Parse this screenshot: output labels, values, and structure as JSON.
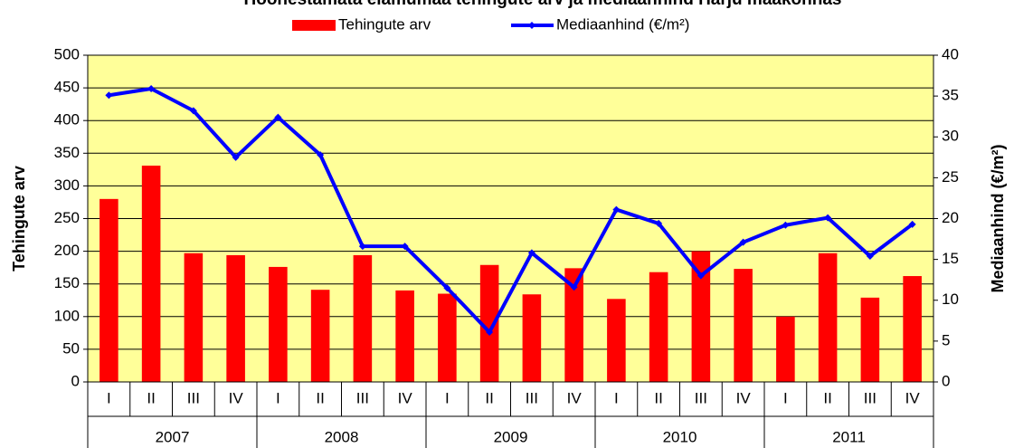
{
  "chart_data": {
    "type": "bar_line",
    "title": "Hoonestamata elamumaa tehingute arv ja mediaanhind Harju maakonnas",
    "categories": [
      "I",
      "II",
      "III",
      "IV",
      "I",
      "II",
      "III",
      "IV",
      "I",
      "II",
      "III",
      "IV",
      "I",
      "II",
      "III",
      "IV",
      "I",
      "II",
      "III",
      "IV"
    ],
    "category_groups": [
      "2007",
      "2008",
      "2009",
      "2010",
      "2011"
    ],
    "series": [
      {
        "name": "Tehingute arv",
        "type": "bar",
        "color": "#ff0000",
        "axis": "y",
        "values": [
          280,
          331,
          197,
          194,
          176,
          141,
          194,
          140,
          135,
          179,
          134,
          174,
          127,
          168,
          200,
          173,
          100,
          197,
          129,
          162
        ]
      },
      {
        "name": "Mediaanhind (€/m²)",
        "type": "line",
        "color": "#0000ff",
        "axis": "y2",
        "values": [
          35.1,
          35.9,
          33.2,
          27.5,
          32.4,
          27.8,
          16.6,
          16.6,
          11.5,
          6.1,
          15.8,
          11.6,
          21.1,
          19.4,
          13.0,
          17.1,
          19.2,
          20.1,
          15.4,
          19.3
        ]
      }
    ],
    "y_label": "Tehingute arv",
    "y2_label": "Mediaanhind (€/m²)",
    "ylim": [
      0,
      500
    ],
    "yticks": [
      0,
      50,
      100,
      150,
      200,
      250,
      300,
      350,
      400,
      450,
      500
    ],
    "y2lim": [
      0,
      40
    ],
    "y2ticks": [
      0,
      5,
      10,
      15,
      20,
      25,
      30,
      35,
      40
    ],
    "grid": true,
    "plot_background": "#ffff99"
  }
}
